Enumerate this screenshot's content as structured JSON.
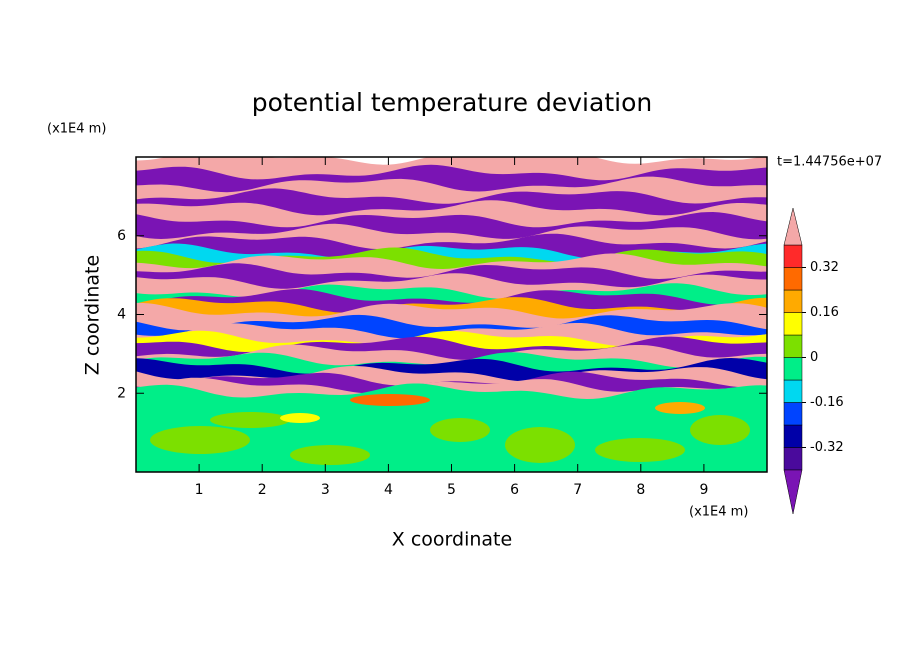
{
  "chart_data": {
    "type": "contour",
    "title": "potential temperature deviation",
    "xlabel": "X coordinate",
    "ylabel": "Z coordinate",
    "x_unit": "(x1E4 m)",
    "y_unit": "(x1E4 m)",
    "time_label": "t=1.44756e+07",
    "xlim": [
      0,
      10
    ],
    "xticks": [
      1,
      2,
      3,
      4,
      5,
      6,
      7,
      8,
      9
    ],
    "ylim": [
      0,
      8
    ],
    "yticks": [
      2,
      4,
      6
    ],
    "colorbar": {
      "levels": [
        -0.4,
        -0.32,
        -0.24,
        -0.16,
        -0.08,
        0,
        0.08,
        0.16,
        0.24,
        0.32,
        0.4
      ],
      "colors": [
        "#7a14b4",
        "#4a0a9c",
        "#0000a8",
        "#0044ff",
        "#00d8f0",
        "#00ee88",
        "#7ce000",
        "#ffff00",
        "#ffaa00",
        "#ff6a00",
        "#ff2a2a",
        "#f4a8a8"
      ],
      "ticks": [
        -0.32,
        -0.16,
        0,
        0.16,
        0.32
      ]
    }
  }
}
